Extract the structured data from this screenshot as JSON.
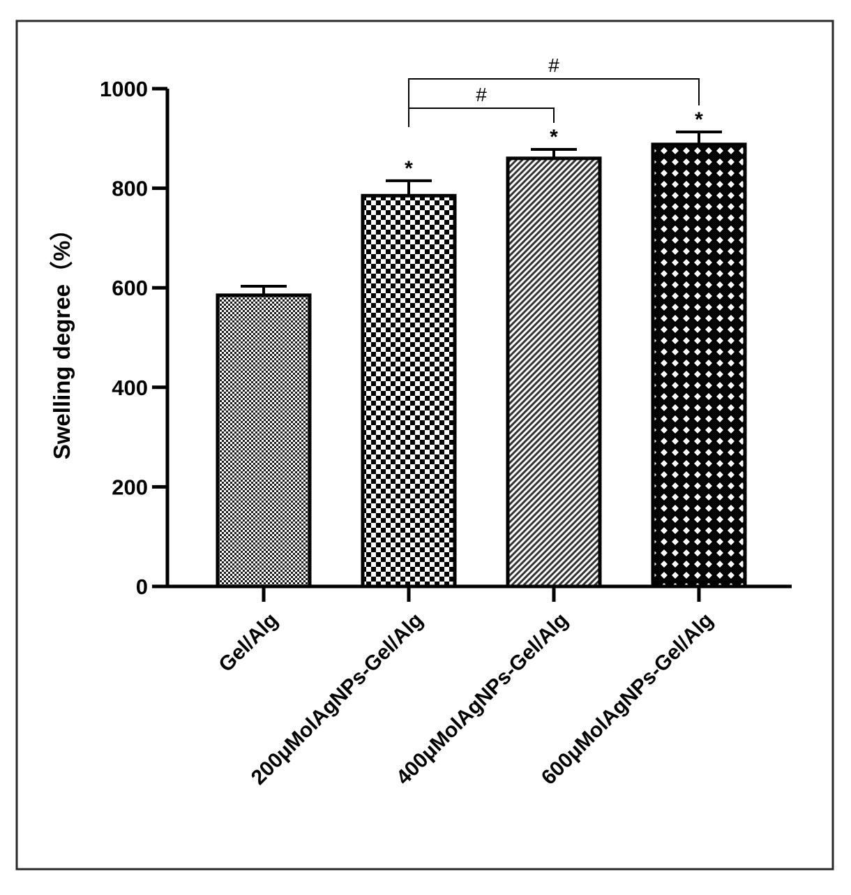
{
  "chart_data": {
    "type": "bar",
    "title": "",
    "xlabel": "",
    "ylabel": "Swelling degree（%）",
    "ylim": [
      0,
      1000
    ],
    "yticks": [
      0,
      200,
      400,
      600,
      800,
      1000
    ],
    "categories": [
      "Gel/Alg",
      "200μMolAgNPs-Gel/Alg",
      "400μMolAgNPs-Gel/Alg",
      "600μMolAgNPs-Gel/Alg"
    ],
    "values": [
      585,
      785,
      860,
      888
    ],
    "errors": [
      18,
      30,
      18,
      25
    ],
    "patterns": [
      "fine-check",
      "checker",
      "diagonal-hatch",
      "diamond-lattice"
    ],
    "bar_color": "#000000",
    "significance_marks": [
      "",
      "*",
      "*",
      "*"
    ],
    "comparisons": [
      {
        "from": 1,
        "to": 2,
        "label": "#"
      },
      {
        "from": 1,
        "to": 3,
        "label": "#"
      }
    ]
  }
}
